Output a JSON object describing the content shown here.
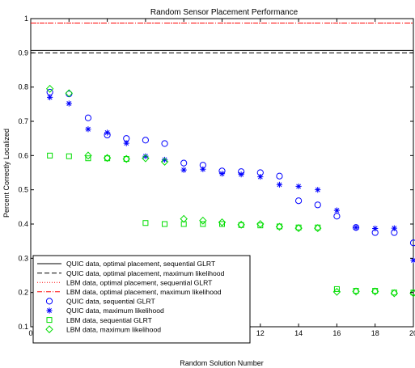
{
  "chart_data": {
    "type": "scatter",
    "title": "Random Sensor Placement Performance",
    "xlabel": "Random Solution Number",
    "ylabel": "Percent Correctly Localized",
    "xlim": [
      0,
      20
    ],
    "ylim": [
      0.1,
      1
    ],
    "xticks": [
      0,
      2,
      4,
      6,
      8,
      10,
      12,
      14,
      16,
      18,
      20
    ],
    "xtick_labels": [
      "0",
      "2",
      "4",
      "6",
      "8",
      "10",
      "12",
      "14",
      "16",
      "18",
      "20"
    ],
    "yticks": [
      0.1,
      0.2,
      0.3,
      0.4,
      0.5,
      0.6,
      0.7,
      0.8,
      0.9,
      1
    ],
    "ytick_labels": [
      "0.1",
      "0.2",
      "0.3",
      "0.4",
      "0.5",
      "0.6",
      "0.7",
      "0.8",
      "0.9",
      "1"
    ],
    "grid": false,
    "legend_position": "bottom-left",
    "reference_lines": [
      {
        "name": "QUIC data, optimal placement, sequential GLRT",
        "y": 0.907,
        "color": "#000000",
        "style": "solid"
      },
      {
        "name": "QUIC data, optimal placement, maximum likelihood",
        "y": 0.9,
        "color": "#000000",
        "style": "dashed"
      },
      {
        "name": "LBM data, optimal placement, sequential GLRT",
        "y": 0.987,
        "color": "#ff0000",
        "style": "dotted"
      },
      {
        "name": "LBM data, optimal placement, maximum likelihood",
        "y": 0.987,
        "color": "#ff0000",
        "style": "dashdot"
      }
    ],
    "series": [
      {
        "name": "QUIC data, sequential GLRT",
        "marker": "circle",
        "color": "#0000ff",
        "x": [
          1,
          2,
          3,
          4,
          5,
          6,
          7,
          8,
          9,
          10,
          11,
          12,
          13,
          14,
          15,
          16,
          17,
          18,
          19,
          20
        ],
        "y": [
          0.785,
          0.78,
          0.71,
          0.66,
          0.65,
          0.645,
          0.635,
          0.578,
          0.572,
          0.555,
          0.553,
          0.55,
          0.54,
          0.468,
          0.456,
          0.423,
          0.39,
          0.375,
          0.375,
          0.345
        ]
      },
      {
        "name": "QUIC data, maximum likelihood",
        "marker": "star",
        "color": "#0000ff",
        "x": [
          1,
          2,
          3,
          4,
          5,
          6,
          7,
          8,
          9,
          10,
          11,
          12,
          13,
          14,
          15,
          16,
          17,
          18,
          19,
          20
        ],
        "y": [
          0.77,
          0.752,
          0.677,
          0.667,
          0.636,
          0.598,
          0.588,
          0.558,
          0.56,
          0.547,
          0.545,
          0.538,
          0.515,
          0.51,
          0.5,
          0.44,
          0.39,
          0.387,
          0.388,
          0.294
        ]
      },
      {
        "name": "LBM data, sequential GLRT",
        "marker": "square",
        "color": "#00dd00",
        "x": [
          1,
          2,
          3,
          4,
          5,
          6,
          7,
          8,
          9,
          10,
          11,
          12,
          13,
          14,
          15,
          16,
          17,
          18,
          19,
          20
        ],
        "y": [
          0.6,
          0.598,
          0.592,
          0.592,
          0.59,
          0.403,
          0.4,
          0.4,
          0.4,
          0.4,
          0.397,
          0.396,
          0.393,
          0.39,
          0.39,
          0.21,
          0.205,
          0.205,
          0.2,
          0.2
        ]
      },
      {
        "name": "LBM data, maximum likelihood",
        "marker": "diamond",
        "color": "#00dd00",
        "x": [
          1,
          2,
          3,
          4,
          5,
          6,
          7,
          8,
          9,
          10,
          11,
          12,
          13,
          14,
          15,
          16,
          17,
          18,
          19,
          20
        ],
        "y": [
          0.795,
          0.782,
          0.6,
          0.593,
          0.59,
          0.592,
          0.582,
          0.415,
          0.41,
          0.405,
          0.398,
          0.4,
          0.392,
          0.388,
          0.388,
          0.202,
          0.203,
          0.203,
          0.198,
          0.198
        ]
      }
    ]
  }
}
